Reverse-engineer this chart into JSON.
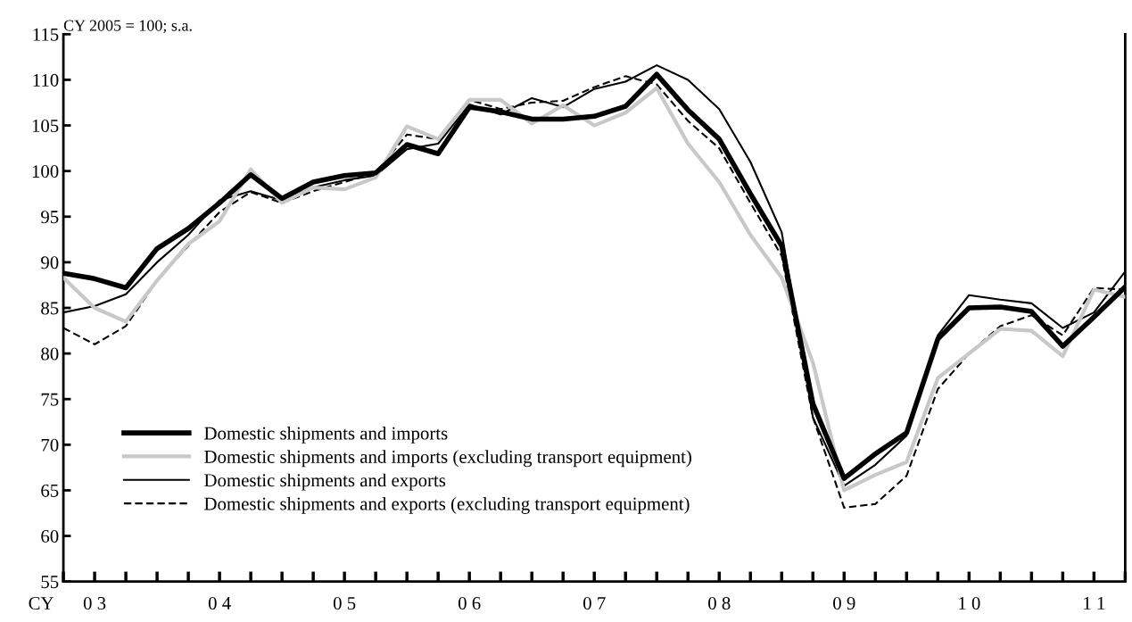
{
  "chart_data": {
    "type": "line",
    "ylabel": "CY 2005 = 100; s.a.",
    "categories": [
      null,
      "0 3",
      null,
      null,
      null,
      "0 4",
      null,
      null,
      null,
      "0 5",
      null,
      null,
      null,
      "0 6",
      null,
      null,
      null,
      "0 7",
      null,
      null,
      null,
      "0 8",
      null,
      null,
      null,
      "0 9",
      null,
      null,
      null,
      "1 0",
      null,
      null,
      null,
      "1 1",
      null
    ],
    "ylim": [
      55,
      115
    ],
    "yticks": [
      55,
      60,
      65,
      70,
      75,
      80,
      85,
      90,
      95,
      100,
      105,
      110,
      115
    ],
    "grid": false,
    "legend": "bottom left",
    "marker": "none",
    "annotations": [
      "CY"
    ],
    "series": [
      {
        "name": "Domestic shipments and imports",
        "color": "#000000",
        "line_style": "solid",
        "values": [
          88.8,
          88.2,
          87.2,
          91.5,
          93.7,
          96.5,
          99.6,
          97.0,
          98.8,
          99.5,
          99.8,
          102.9,
          101.9,
          107.0,
          106.5,
          105.7,
          105.7,
          106.0,
          107.1,
          110.6,
          106.7,
          103.5,
          97.5,
          91.8,
          74.5,
          66.3,
          69.0,
          71.3,
          81.6,
          85.0,
          85.1,
          84.6,
          80.8,
          84.0,
          87.3
        ]
      },
      {
        "name": "Domestic shipments and imports (excluding transport equipment)",
        "color": "#c8c8c8",
        "line_style": "solid",
        "values": [
          88.3,
          85.0,
          83.5,
          88.0,
          92.0,
          94.5,
          100.2,
          96.5,
          98.2,
          98.0,
          99.3,
          104.9,
          103.5,
          107.8,
          107.8,
          105.2,
          107.2,
          105.0,
          106.4,
          109.1,
          103.0,
          98.8,
          93.0,
          88.3,
          79.0,
          65.0,
          66.7,
          68.1,
          77.3,
          80.0,
          82.7,
          82.5,
          79.7,
          87.0,
          86.2
        ]
      },
      {
        "name": "Domestic shipments and exports",
        "color": "#000000",
        "line_style": "solid",
        "values": [
          84.5,
          85.2,
          86.5,
          90.0,
          93.0,
          96.8,
          97.8,
          96.8,
          98.2,
          99.0,
          99.5,
          102.4,
          103.0,
          107.3,
          106.2,
          108.0,
          107.0,
          109.0,
          109.8,
          111.6,
          110.0,
          106.8,
          101.0,
          93.3,
          73.0,
          65.5,
          67.8,
          71.0,
          82.0,
          86.4,
          85.9,
          85.5,
          82.8,
          84.5,
          89.0
        ]
      },
      {
        "name": "Domestic shipments and exports (excluding transport equipment)",
        "color": "#000000",
        "line_style": "dashed",
        "values": [
          82.8,
          81.0,
          83.0,
          88.0,
          91.8,
          95.5,
          97.7,
          96.5,
          97.8,
          98.8,
          99.8,
          104.0,
          103.5,
          107.8,
          106.8,
          107.5,
          107.7,
          109.2,
          110.4,
          109.5,
          105.5,
          102.5,
          96.5,
          90.7,
          73.0,
          63.1,
          63.5,
          66.6,
          76.1,
          80.0,
          83.0,
          84.2,
          82.0,
          87.2,
          87.0
        ]
      }
    ]
  }
}
